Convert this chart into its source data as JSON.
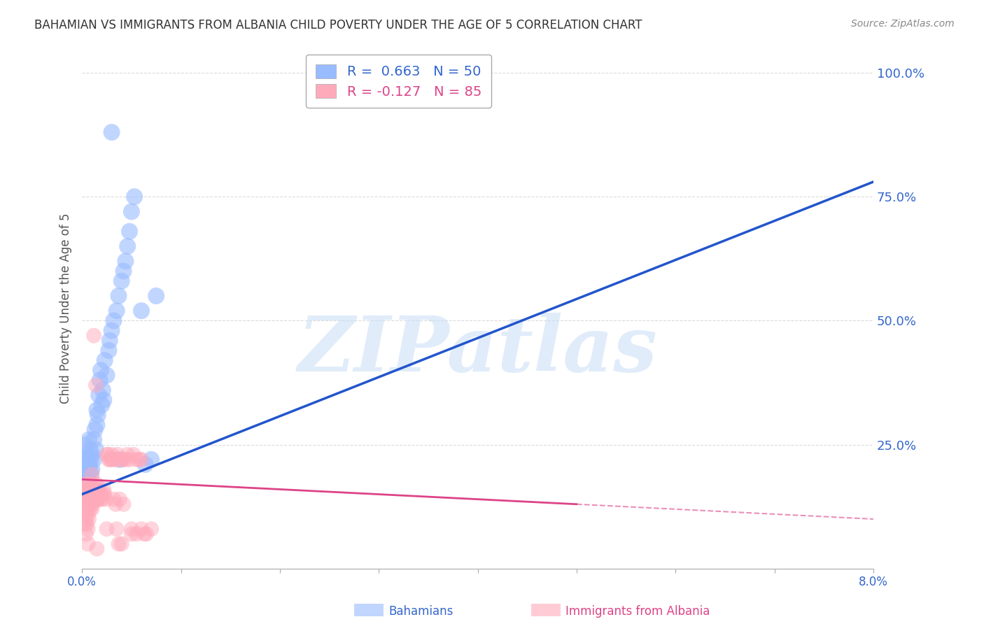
{
  "title": "BAHAMIAN VS IMMIGRANTS FROM ALBANIA CHILD POVERTY UNDER THE AGE OF 5 CORRELATION CHART",
  "source": "Source: ZipAtlas.com",
  "ylabel": "Child Poverty Under the Age of 5",
  "yticks": [
    0.0,
    0.25,
    0.5,
    0.75,
    1.0
  ],
  "ytick_labels": [
    "",
    "25.0%",
    "50.0%",
    "75.0%",
    "100.0%"
  ],
  "xlim": [
    0.0,
    0.08
  ],
  "ylim": [
    0.0,
    1.05
  ],
  "watermark": "ZIPatlas",
  "bahamian_color": "#99bbff",
  "albanian_color": "#ffaabb",
  "blue_line_color": "#2255cc",
  "pink_line_color": "#dd4488",
  "grid_color": "#cccccc",
  "background_color": "#ffffff",
  "title_color": "#333333",
  "tick_label_color": "#3366cc",
  "bahamian_scatter": [
    [
      0.0002,
      0.2
    ],
    [
      0.0003,
      0.22
    ],
    [
      0.0004,
      0.18
    ],
    [
      0.0004,
      0.25
    ],
    [
      0.0005,
      0.2
    ],
    [
      0.0005,
      0.23
    ],
    [
      0.0006,
      0.22
    ],
    [
      0.0006,
      0.19
    ],
    [
      0.0007,
      0.21
    ],
    [
      0.0007,
      0.26
    ],
    [
      0.0008,
      0.2
    ],
    [
      0.0008,
      0.24
    ],
    [
      0.0009,
      0.22
    ],
    [
      0.0009,
      0.19
    ],
    [
      0.001,
      0.23
    ],
    [
      0.001,
      0.2
    ],
    [
      0.0012,
      0.26
    ],
    [
      0.0012,
      0.22
    ],
    [
      0.0013,
      0.28
    ],
    [
      0.0014,
      0.24
    ],
    [
      0.0015,
      0.29
    ],
    [
      0.0015,
      0.32
    ],
    [
      0.0016,
      0.31
    ],
    [
      0.0017,
      0.35
    ],
    [
      0.0018,
      0.38
    ],
    [
      0.0019,
      0.4
    ],
    [
      0.002,
      0.33
    ],
    [
      0.0021,
      0.36
    ],
    [
      0.0022,
      0.34
    ],
    [
      0.0023,
      0.42
    ],
    [
      0.0025,
      0.39
    ],
    [
      0.0027,
      0.44
    ],
    [
      0.0028,
      0.46
    ],
    [
      0.003,
      0.48
    ],
    [
      0.0032,
      0.5
    ],
    [
      0.0035,
      0.52
    ],
    [
      0.0037,
      0.55
    ],
    [
      0.0038,
      0.22
    ],
    [
      0.004,
      0.58
    ],
    [
      0.0042,
      0.6
    ],
    [
      0.0044,
      0.62
    ],
    [
      0.0046,
      0.65
    ],
    [
      0.0048,
      0.68
    ],
    [
      0.005,
      0.72
    ],
    [
      0.0053,
      0.75
    ],
    [
      0.006,
      0.52
    ],
    [
      0.0064,
      0.21
    ],
    [
      0.007,
      0.22
    ],
    [
      0.003,
      0.88
    ],
    [
      0.0075,
      0.55
    ]
  ],
  "albanian_scatter": [
    [
      0.0002,
      0.17
    ],
    [
      0.0002,
      0.14
    ],
    [
      0.0003,
      0.15
    ],
    [
      0.0003,
      0.12
    ],
    [
      0.0003,
      0.09
    ],
    [
      0.0004,
      0.16
    ],
    [
      0.0004,
      0.13
    ],
    [
      0.0004,
      0.1
    ],
    [
      0.0004,
      0.07
    ],
    [
      0.0005,
      0.17
    ],
    [
      0.0005,
      0.15
    ],
    [
      0.0005,
      0.12
    ],
    [
      0.0005,
      0.09
    ],
    [
      0.0006,
      0.16
    ],
    [
      0.0006,
      0.14
    ],
    [
      0.0006,
      0.11
    ],
    [
      0.0006,
      0.08
    ],
    [
      0.0006,
      0.05
    ],
    [
      0.0007,
      0.17
    ],
    [
      0.0007,
      0.15
    ],
    [
      0.0007,
      0.13
    ],
    [
      0.0007,
      0.1
    ],
    [
      0.0008,
      0.16
    ],
    [
      0.0008,
      0.14
    ],
    [
      0.0008,
      0.12
    ],
    [
      0.0009,
      0.17
    ],
    [
      0.0009,
      0.15
    ],
    [
      0.0009,
      0.13
    ],
    [
      0.001,
      0.16
    ],
    [
      0.001,
      0.14
    ],
    [
      0.001,
      0.12
    ],
    [
      0.001,
      0.19
    ],
    [
      0.0011,
      0.15
    ],
    [
      0.0011,
      0.13
    ],
    [
      0.0012,
      0.16
    ],
    [
      0.0012,
      0.14
    ],
    [
      0.0013,
      0.17
    ],
    [
      0.0013,
      0.15
    ],
    [
      0.0014,
      0.16
    ],
    [
      0.0014,
      0.14
    ],
    [
      0.0015,
      0.17
    ],
    [
      0.0015,
      0.15
    ],
    [
      0.0016,
      0.16
    ],
    [
      0.0016,
      0.14
    ],
    [
      0.0017,
      0.15
    ],
    [
      0.0018,
      0.14
    ],
    [
      0.0019,
      0.15
    ],
    [
      0.002,
      0.14
    ],
    [
      0.0021,
      0.15
    ],
    [
      0.0022,
      0.16
    ],
    [
      0.0023,
      0.15
    ],
    [
      0.0024,
      0.14
    ],
    [
      0.0012,
      0.47
    ],
    [
      0.0014,
      0.37
    ],
    [
      0.0025,
      0.23
    ],
    [
      0.0026,
      0.23
    ],
    [
      0.0027,
      0.22
    ],
    [
      0.0028,
      0.22
    ],
    [
      0.003,
      0.23
    ],
    [
      0.0031,
      0.22
    ],
    [
      0.0032,
      0.14
    ],
    [
      0.0034,
      0.13
    ],
    [
      0.0035,
      0.22
    ],
    [
      0.0036,
      0.23
    ],
    [
      0.0037,
      0.05
    ],
    [
      0.0038,
      0.14
    ],
    [
      0.004,
      0.22
    ],
    [
      0.0041,
      0.22
    ],
    [
      0.0042,
      0.13
    ],
    [
      0.0044,
      0.22
    ],
    [
      0.0046,
      0.23
    ],
    [
      0.0048,
      0.22
    ],
    [
      0.005,
      0.07
    ],
    [
      0.0052,
      0.23
    ],
    [
      0.0055,
      0.22
    ],
    [
      0.0058,
      0.22
    ],
    [
      0.006,
      0.08
    ],
    [
      0.0063,
      0.07
    ],
    [
      0.003,
      0.22
    ],
    [
      0.0035,
      0.08
    ],
    [
      0.004,
      0.05
    ],
    [
      0.005,
      0.08
    ],
    [
      0.0055,
      0.07
    ],
    [
      0.006,
      0.22
    ],
    [
      0.0065,
      0.07
    ],
    [
      0.007,
      0.08
    ],
    [
      0.0025,
      0.08
    ],
    [
      0.0015,
      0.04
    ]
  ]
}
